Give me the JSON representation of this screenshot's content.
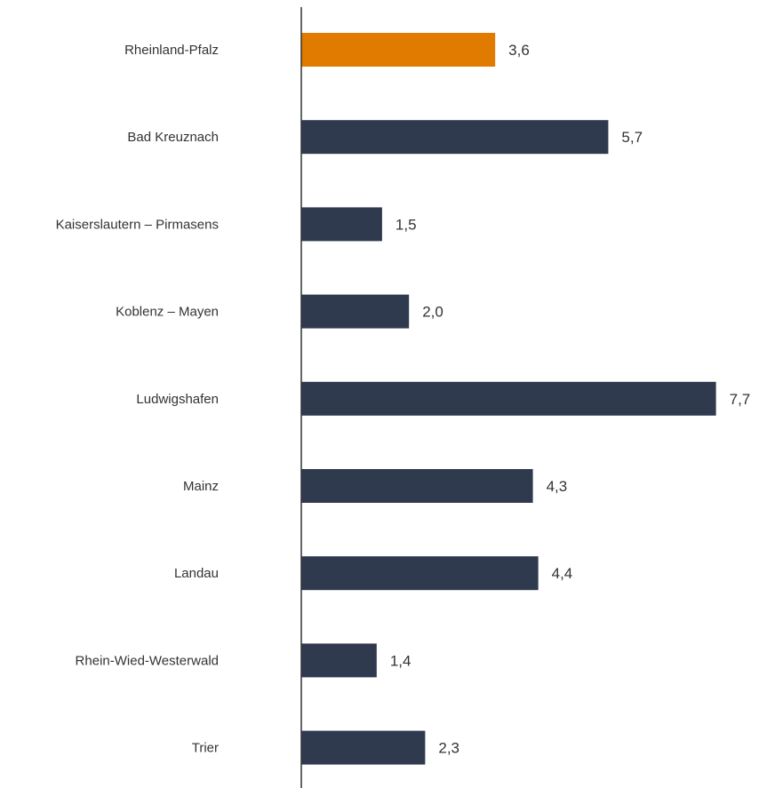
{
  "chart_data": {
    "type": "bar",
    "orientation": "horizontal",
    "categories": [
      "Rheinland-Pfalz",
      "Bad Kreuznach",
      "Kaiserslautern – Pirmasens",
      "Koblenz – Mayen",
      "Ludwigshafen",
      "Mainz",
      "Landau",
      "Rhein-Wied-Westerwald",
      "Trier"
    ],
    "values": [
      3.6,
      5.7,
      1.5,
      2.0,
      7.7,
      4.3,
      4.4,
      1.4,
      2.3
    ],
    "value_labels": [
      "3,6",
      "5,7",
      "1,5",
      "2,0",
      "7,7",
      "4,3",
      "4,4",
      "1,4",
      "2,3"
    ],
    "highlight_index": 0,
    "xlim": [
      0,
      8
    ],
    "grid": false,
    "legend": "none",
    "colors": {
      "highlight": "#E07B00",
      "default": "#2F3A4F",
      "axis": "#333333",
      "text": "#333333"
    }
  }
}
